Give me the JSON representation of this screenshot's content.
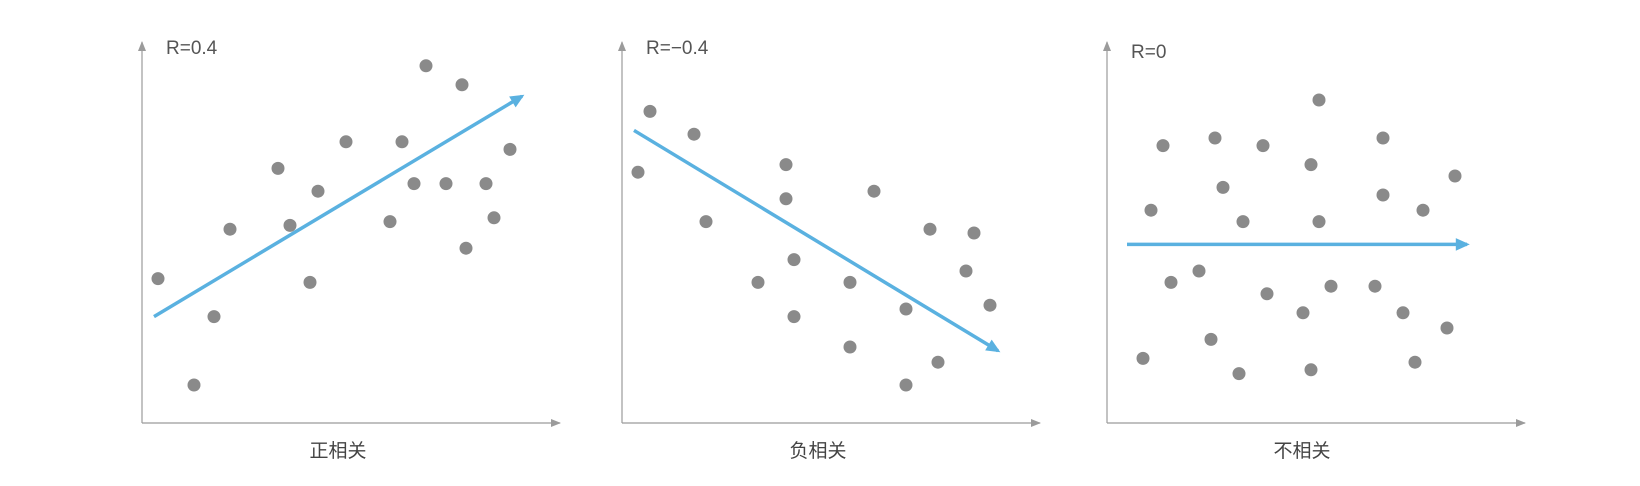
{
  "colors": {
    "axis": "#9b9b9b",
    "point": "#8a8a8a",
    "trend": "#5ab1e0",
    "text": "#555555"
  },
  "chart_data": [
    {
      "type": "scatter",
      "title": "R=0.4",
      "xlabel": "正相关",
      "ylabel": "",
      "grid": false,
      "points": [
        {
          "x": 4,
          "y": 38
        },
        {
          "x": 13,
          "y": 10
        },
        {
          "x": 18,
          "y": 28
        },
        {
          "x": 22,
          "y": 51
        },
        {
          "x": 34,
          "y": 67
        },
        {
          "x": 37,
          "y": 52
        },
        {
          "x": 42,
          "y": 37
        },
        {
          "x": 44,
          "y": 61
        },
        {
          "x": 51,
          "y": 74
        },
        {
          "x": 62,
          "y": 53
        },
        {
          "x": 65,
          "y": 74
        },
        {
          "x": 68,
          "y": 63
        },
        {
          "x": 71,
          "y": 94
        },
        {
          "x": 76,
          "y": 63
        },
        {
          "x": 80,
          "y": 89
        },
        {
          "x": 81,
          "y": 46
        },
        {
          "x": 86,
          "y": 63
        },
        {
          "x": 88,
          "y": 54
        },
        {
          "x": 92,
          "y": 72
        }
      ],
      "trend": {
        "x": [
          3,
          95
        ],
        "y": [
          28,
          86
        ]
      }
    },
    {
      "type": "scatter",
      "title": "R=−0.4",
      "xlabel": "负相关",
      "ylabel": "",
      "grid": false,
      "points": [
        {
          "x": 4,
          "y": 66
        },
        {
          "x": 7,
          "y": 82
        },
        {
          "x": 18,
          "y": 76
        },
        {
          "x": 21,
          "y": 53
        },
        {
          "x": 34,
          "y": 37
        },
        {
          "x": 41,
          "y": 68
        },
        {
          "x": 41,
          "y": 59
        },
        {
          "x": 43,
          "y": 43
        },
        {
          "x": 43,
          "y": 28
        },
        {
          "x": 57,
          "y": 37
        },
        {
          "x": 57,
          "y": 20
        },
        {
          "x": 63,
          "y": 61
        },
        {
          "x": 71,
          "y": 30
        },
        {
          "x": 71,
          "y": 10
        },
        {
          "x": 79,
          "y": 16
        },
        {
          "x": 77,
          "y": 51
        },
        {
          "x": 86,
          "y": 40
        },
        {
          "x": 88,
          "y": 50
        },
        {
          "x": 92,
          "y": 31
        }
      ],
      "trend": {
        "x": [
          3,
          94
        ],
        "y": [
          77,
          19
        ]
      }
    },
    {
      "type": "scatter",
      "title": "R=0",
      "xlabel": "不相关",
      "ylabel": "",
      "grid": false,
      "points": [
        {
          "x": 9,
          "y": 17
        },
        {
          "x": 11,
          "y": 56
        },
        {
          "x": 14,
          "y": 73
        },
        {
          "x": 16,
          "y": 37
        },
        {
          "x": 23,
          "y": 40
        },
        {
          "x": 26,
          "y": 22
        },
        {
          "x": 27,
          "y": 75
        },
        {
          "x": 29,
          "y": 62
        },
        {
          "x": 33,
          "y": 13
        },
        {
          "x": 34,
          "y": 53
        },
        {
          "x": 39,
          "y": 73
        },
        {
          "x": 40,
          "y": 34
        },
        {
          "x": 49,
          "y": 29
        },
        {
          "x": 51,
          "y": 68
        },
        {
          "x": 51,
          "y": 14
        },
        {
          "x": 53,
          "y": 85
        },
        {
          "x": 53,
          "y": 53
        },
        {
          "x": 56,
          "y": 36
        },
        {
          "x": 67,
          "y": 36
        },
        {
          "x": 69,
          "y": 75
        },
        {
          "x": 69,
          "y": 60
        },
        {
          "x": 74,
          "y": 29
        },
        {
          "x": 77,
          "y": 16
        },
        {
          "x": 79,
          "y": 56
        },
        {
          "x": 85,
          "y": 25
        },
        {
          "x": 87,
          "y": 65
        }
      ],
      "trend": {
        "x": [
          5,
          90
        ],
        "y": [
          47,
          47
        ]
      }
    }
  ]
}
